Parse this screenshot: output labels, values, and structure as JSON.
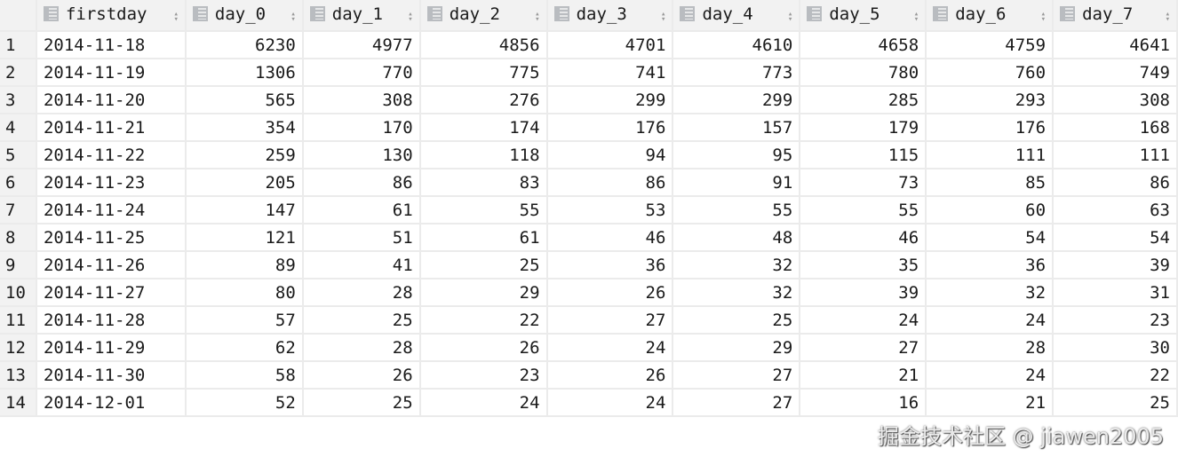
{
  "columns": [
    "firstday",
    "day_0",
    "day_1",
    "day_2",
    "day_3",
    "day_4",
    "day_5",
    "day_6",
    "day_7"
  ],
  "rows": [
    [
      "1",
      "2014-11-18",
      "6230",
      "4977",
      "4856",
      "4701",
      "4610",
      "4658",
      "4759",
      "4641"
    ],
    [
      "2",
      "2014-11-19",
      "1306",
      "770",
      "775",
      "741",
      "773",
      "780",
      "760",
      "749"
    ],
    [
      "3",
      "2014-11-20",
      "565",
      "308",
      "276",
      "299",
      "299",
      "285",
      "293",
      "308"
    ],
    [
      "4",
      "2014-11-21",
      "354",
      "170",
      "174",
      "176",
      "157",
      "179",
      "176",
      "168"
    ],
    [
      "5",
      "2014-11-22",
      "259",
      "130",
      "118",
      "94",
      "95",
      "115",
      "111",
      "111"
    ],
    [
      "6",
      "2014-11-23",
      "205",
      "86",
      "83",
      "86",
      "91",
      "73",
      "85",
      "86"
    ],
    [
      "7",
      "2014-11-24",
      "147",
      "61",
      "55",
      "53",
      "55",
      "55",
      "60",
      "63"
    ],
    [
      "8",
      "2014-11-25",
      "121",
      "51",
      "61",
      "46",
      "48",
      "46",
      "54",
      "54"
    ],
    [
      "9",
      "2014-11-26",
      "89",
      "41",
      "25",
      "36",
      "32",
      "35",
      "36",
      "39"
    ],
    [
      "10",
      "2014-11-27",
      "80",
      "28",
      "29",
      "26",
      "32",
      "39",
      "32",
      "31"
    ],
    [
      "11",
      "2014-11-28",
      "57",
      "25",
      "22",
      "27",
      "25",
      "24",
      "24",
      "23"
    ],
    [
      "12",
      "2014-11-29",
      "62",
      "28",
      "26",
      "24",
      "29",
      "27",
      "28",
      "30"
    ],
    [
      "13",
      "2014-11-30",
      "58",
      "26",
      "23",
      "26",
      "27",
      "21",
      "24",
      "22"
    ],
    [
      "14",
      "2014-12-01",
      "52",
      "25",
      "24",
      "24",
      "27",
      "16",
      "21",
      "25"
    ]
  ],
  "watermark": "掘金技术社区 @ jiawen2005"
}
